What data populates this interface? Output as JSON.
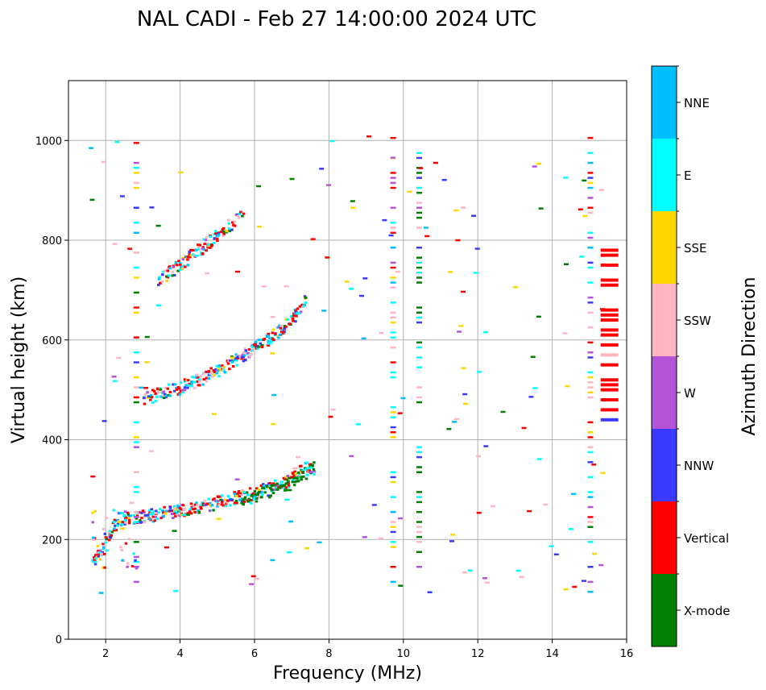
{
  "chart_data": {
    "type": "scatter",
    "title": "NAL CADI - Feb 27 14:00:00 2024 UTC",
    "xlabel": "Frequency (MHz)",
    "ylabel": "Virtual height (km)",
    "xlim": [
      1,
      16
    ],
    "ylim": [
      0,
      1120
    ],
    "xticks": [
      2,
      4,
      6,
      8,
      10,
      12,
      14,
      16
    ],
    "yticks": [
      0,
      200,
      400,
      600,
      800,
      1000
    ],
    "grid": true,
    "colorbar": {
      "title": "Azimuth Direction",
      "categories": [
        {
          "name": "X-mode",
          "color": "#008000"
        },
        {
          "name": "Vertical",
          "color": "#ff0000"
        },
        {
          "name": "NNW",
          "color": "#3a3aff"
        },
        {
          "name": "W",
          "color": "#b455d8"
        },
        {
          "name": "SSW",
          "color": "#ffb6c1"
        },
        {
          "name": "SSE",
          "color": "#ffd700"
        },
        {
          "name": "E",
          "color": "#00ffff"
        },
        {
          "name": "NNE",
          "color": "#00bfff"
        }
      ]
    },
    "series": [
      {
        "name": "F-layer first hop (O)",
        "segments": [
          [
            1.6,
            150
          ],
          [
            2.0,
            200
          ],
          [
            2.3,
            240
          ],
          [
            2.8,
            245
          ],
          [
            3.4,
            250
          ],
          [
            4.0,
            258
          ],
          [
            4.6,
            265
          ],
          [
            5.0,
            275
          ],
          [
            5.4,
            282
          ],
          [
            5.8,
            290
          ],
          [
            6.1,
            295
          ],
          [
            6.5,
            305
          ],
          [
            6.9,
            318
          ],
          [
            7.2,
            335
          ],
          [
            7.6,
            350
          ]
        ]
      },
      {
        "name": "F-layer first hop (X)",
        "segments": [
          [
            5.6,
            280
          ],
          [
            6.0,
            288
          ],
          [
            6.4,
            298
          ],
          [
            6.8,
            308
          ],
          [
            7.2,
            325
          ],
          [
            7.6,
            345
          ]
        ]
      },
      {
        "name": "Second hop",
        "segments": [
          [
            3.0,
            480
          ],
          [
            3.5,
            495
          ],
          [
            4.0,
            505
          ],
          [
            4.5,
            520
          ],
          [
            5.0,
            540
          ],
          [
            5.5,
            560
          ],
          [
            6.0,
            585
          ],
          [
            6.5,
            610
          ],
          [
            7.0,
            640
          ],
          [
            7.4,
            690
          ]
        ]
      },
      {
        "name": "Third hop",
        "segments": [
          [
            3.4,
            720
          ],
          [
            3.9,
            745
          ],
          [
            4.3,
            770
          ],
          [
            4.8,
            800
          ],
          [
            5.3,
            830
          ],
          [
            5.7,
            860
          ]
        ]
      },
      {
        "name": "Vertical column 10.4 MHz",
        "x": 10.4,
        "y_range": [
          95,
          990
        ]
      },
      {
        "name": "Column 9.7 MHz",
        "x": 9.7,
        "y_range": [
          95,
          1010
        ]
      },
      {
        "name": "Column 15.3 MHz",
        "x": 15.3,
        "y_range": [
          440,
          780
        ]
      },
      {
        "name": "Column 15.0 MHz",
        "x": 15.0,
        "y_range": [
          95,
          1010
        ]
      },
      {
        "name": "Column 2.8 MHz",
        "x": 2.8,
        "y_range": [
          95,
          1000
        ]
      }
    ]
  }
}
